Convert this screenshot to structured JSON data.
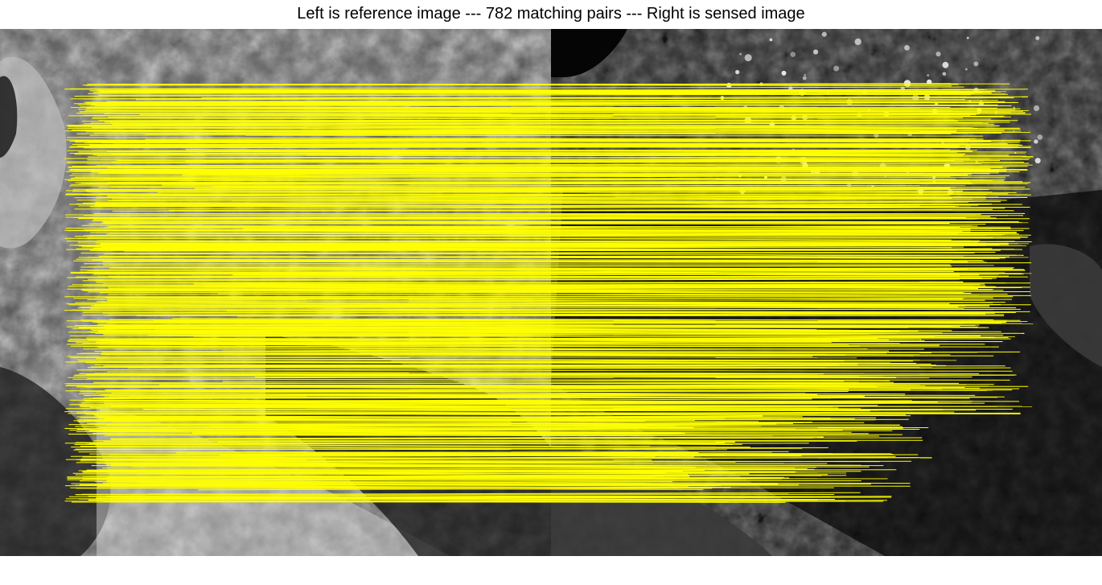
{
  "figure": {
    "title": "Left is reference image --- 782 matching pairs --- Right is sensed image",
    "match_count": 782,
    "line_color": "#ffff00",
    "left_label": "reference image",
    "right_label": "sensed image"
  }
}
